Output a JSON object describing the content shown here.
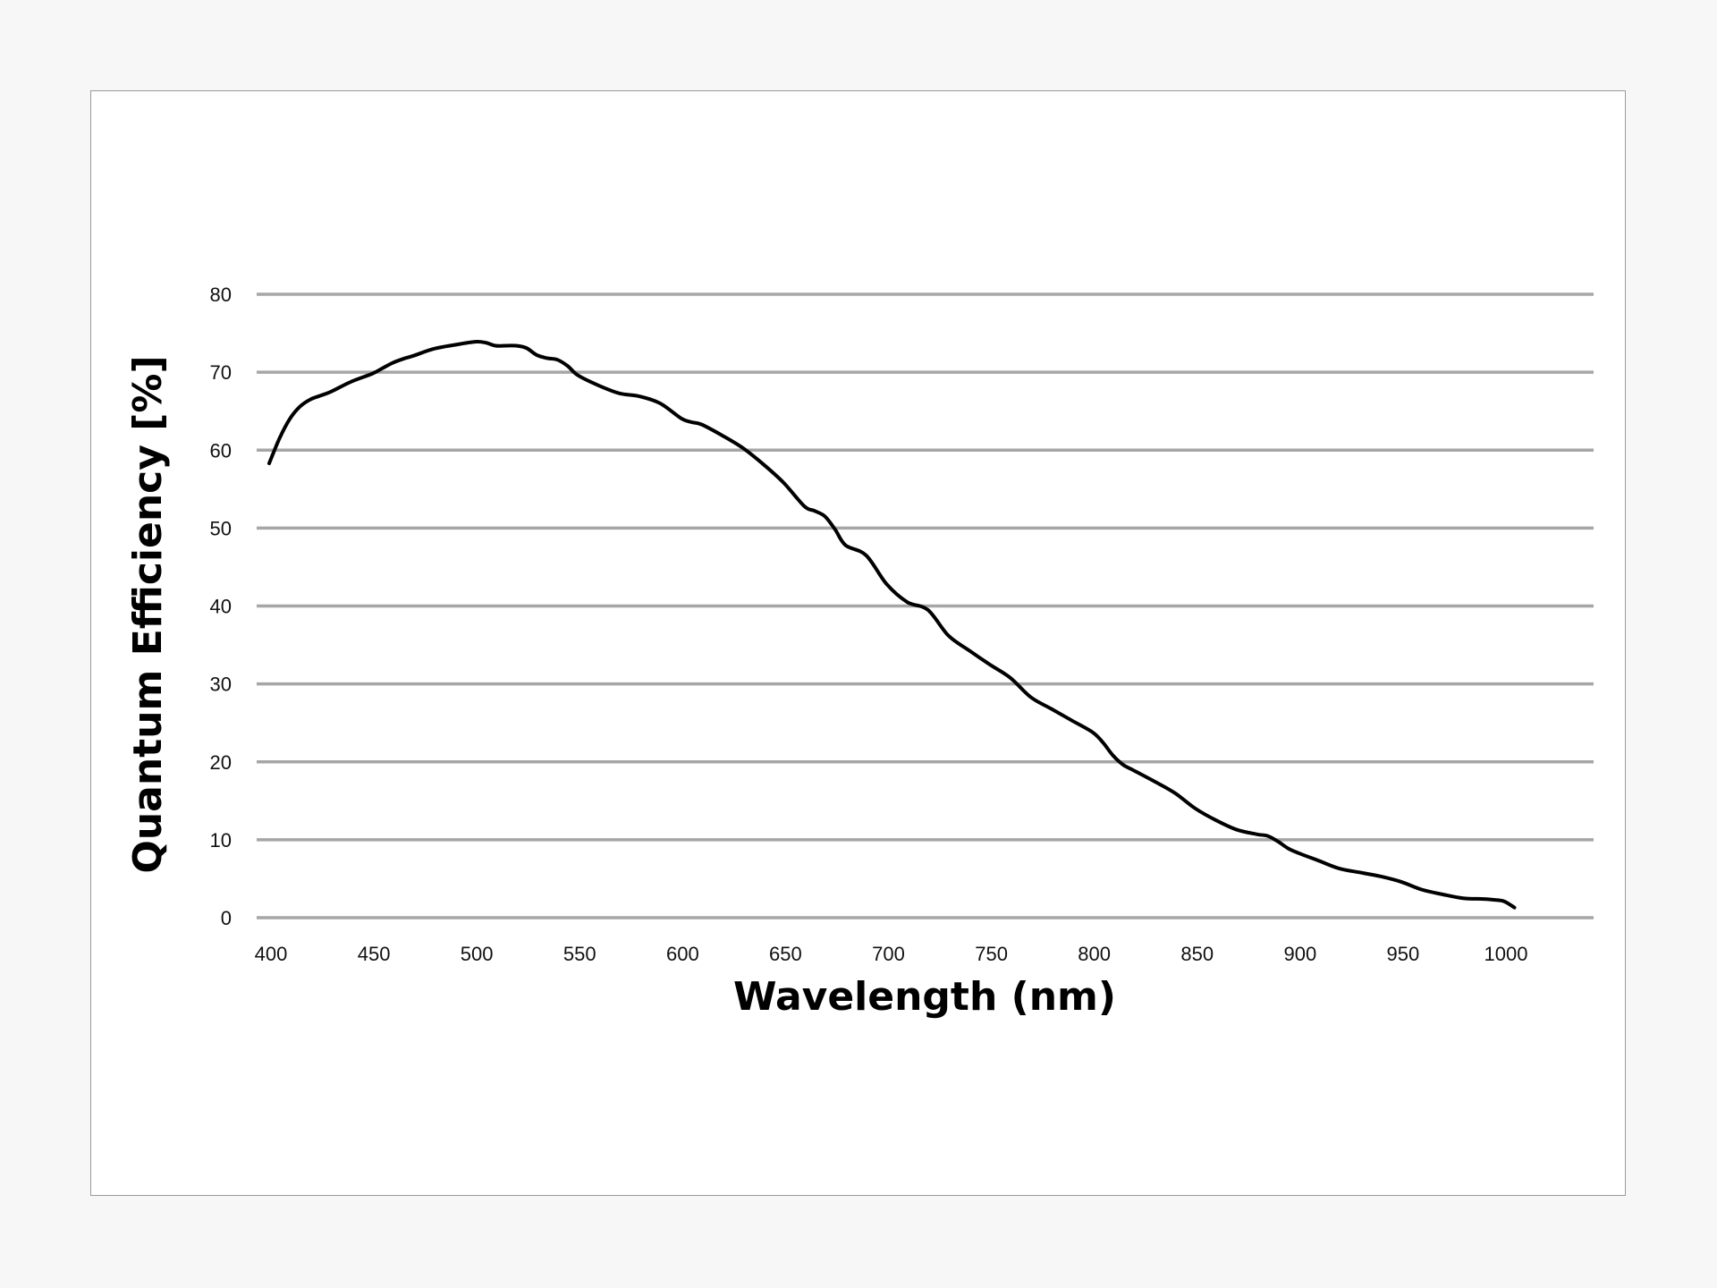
{
  "chart_data": {
    "type": "line",
    "title": "",
    "xlabel": "Wavelength (nm)",
    "ylabel": "Quantum Efficiency [%]",
    "xlim": [
      400,
      1000
    ],
    "ylim": [
      0,
      80
    ],
    "xticks": [
      400,
      450,
      500,
      550,
      600,
      650,
      700,
      750,
      800,
      850,
      900,
      950,
      1000
    ],
    "yticks": [
      0,
      10,
      20,
      30,
      40,
      50,
      60,
      70,
      80
    ],
    "x_tick_labels": [
      "400",
      "450",
      "500",
      "550",
      "600",
      "650",
      "700",
      "750",
      "800",
      "850",
      "900",
      "950",
      "1000"
    ],
    "y_tick_labels": [
      "0",
      "10",
      "20",
      "30",
      "40",
      "50",
      "60",
      "70",
      "80"
    ],
    "grid": "horizontal",
    "legend": "none",
    "colors": {
      "line": "#000000",
      "grid": "#a6a6a6",
      "plot_background": "#ffffff",
      "page_background": "#f7f7f7",
      "frame_border": "#9a9a9a"
    },
    "series": [
      {
        "x": [
          400,
          405,
          410,
          415,
          420,
          425,
          430,
          440,
          450,
          455,
          460,
          465,
          470,
          480,
          490,
          500,
          505,
          510,
          515,
          520,
          525,
          530,
          535,
          540,
          545,
          550,
          560,
          570,
          580,
          590,
          600,
          605,
          610,
          620,
          630,
          640,
          650,
          660,
          665,
          670,
          675,
          680,
          690,
          700,
          710,
          720,
          730,
          740,
          750,
          760,
          770,
          780,
          790,
          800,
          805,
          810,
          815,
          820,
          830,
          840,
          850,
          860,
          870,
          880,
          885,
          890,
          895,
          900,
          910,
          920,
          930,
          940,
          950,
          960,
          970,
          980,
          990,
          995,
          1000,
          1005
        ],
        "y": [
          58.3,
          61.5,
          64.0,
          65.6,
          66.5,
          67.0,
          67.5,
          68.8,
          69.8,
          70.5,
          71.2,
          71.7,
          72.1,
          73.0,
          73.5,
          73.9,
          73.8,
          73.4,
          73.4,
          73.4,
          73.1,
          72.2,
          71.8,
          71.6,
          70.8,
          69.6,
          68.3,
          67.3,
          66.9,
          66.0,
          64.1,
          63.6,
          63.3,
          61.9,
          60.3,
          58.2,
          55.8,
          52.8,
          52.2,
          51.5,
          49.8,
          47.8,
          46.5,
          42.8,
          40.5,
          39.5,
          36.2,
          34.3,
          32.5,
          30.8,
          28.3,
          26.8,
          25.3,
          23.8,
          22.5,
          20.8,
          19.6,
          18.9,
          17.5,
          16.0,
          14.0,
          12.5,
          11.3,
          10.7,
          10.5,
          9.8,
          8.9,
          8.3,
          7.3,
          6.3,
          5.8,
          5.3,
          4.6,
          3.6,
          3.0,
          2.5,
          2.4,
          2.3,
          2.1,
          1.3
        ]
      }
    ]
  }
}
